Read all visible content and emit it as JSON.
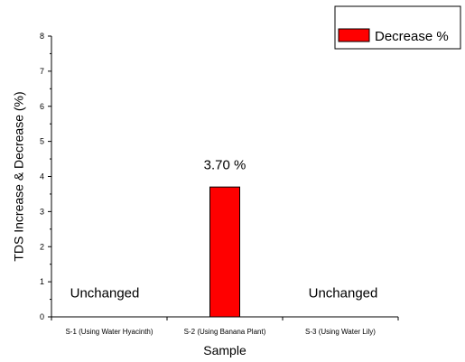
{
  "chart_data": {
    "type": "bar",
    "categories": [
      "S-1 (Using Water Hyacinth)",
      "S-2 (Using Banana Plant)",
      "S-3 (Using Water Lily)"
    ],
    "series": [
      {
        "name": "Decrease %",
        "values": [
          null,
          3.7,
          null
        ],
        "color": "#ff0000"
      }
    ],
    "xlabel": "Sample",
    "ylabel": "TDS Increase & Decrease (%)",
    "ylim": [
      0,
      8
    ],
    "yticks": [
      "0",
      "1",
      "2",
      "3",
      "4",
      "5",
      "6",
      "7",
      "8"
    ],
    "annotations": [
      "Unchanged",
      "3.70 %",
      "Unchanged"
    ],
    "legend": {
      "position": "top-right",
      "label": "Decrease %"
    },
    "grid": false
  }
}
